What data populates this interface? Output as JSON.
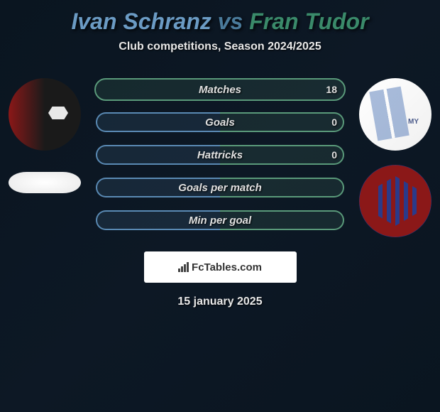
{
  "title": {
    "player1": "Ivan Schranz",
    "vs": "vs",
    "player2": "Fran Tudor"
  },
  "subtitle": "Club competitions, Season 2024/2025",
  "stats": [
    {
      "label": "Matches",
      "value_right": 18,
      "bar_left_pct": 0,
      "bar_right_pct": 100,
      "left_color": "#5a8ab4",
      "right_color": "#5a9a7a",
      "track_style": "green"
    },
    {
      "label": "Goals",
      "value_right": 0,
      "bar_left_pct": 50,
      "bar_right_pct": 50,
      "left_color": "#5a8ab4",
      "right_color": "#5a9a7a",
      "track_style": "split"
    },
    {
      "label": "Hattricks",
      "value_right": 0,
      "bar_left_pct": 50,
      "bar_right_pct": 50,
      "left_color": "#5a8ab4",
      "right_color": "#5a9a7a",
      "track_style": "split"
    },
    {
      "label": "Goals per match",
      "value_right": null,
      "bar_left_pct": 50,
      "bar_right_pct": 50,
      "left_color": "#5a8ab4",
      "right_color": "#5a9a7a",
      "track_style": "split"
    },
    {
      "label": "Min per goal",
      "value_right": null,
      "bar_left_pct": 50,
      "bar_right_pct": 50,
      "left_color": "#5a8ab4",
      "right_color": "#5a9a7a",
      "track_style": "split"
    }
  ],
  "watermark": "FcTables.com",
  "date": "15 january 2025",
  "colors": {
    "player1_text": "#6b9bc4",
    "vs_text": "#4a7a9a",
    "player2_text": "#3a8a6a",
    "background_start": "#0a1520",
    "background_end": "#0d1825",
    "text_light": "#e8e8e8",
    "bar_blue": "#5a8ab4",
    "bar_green": "#5a9a7a"
  }
}
